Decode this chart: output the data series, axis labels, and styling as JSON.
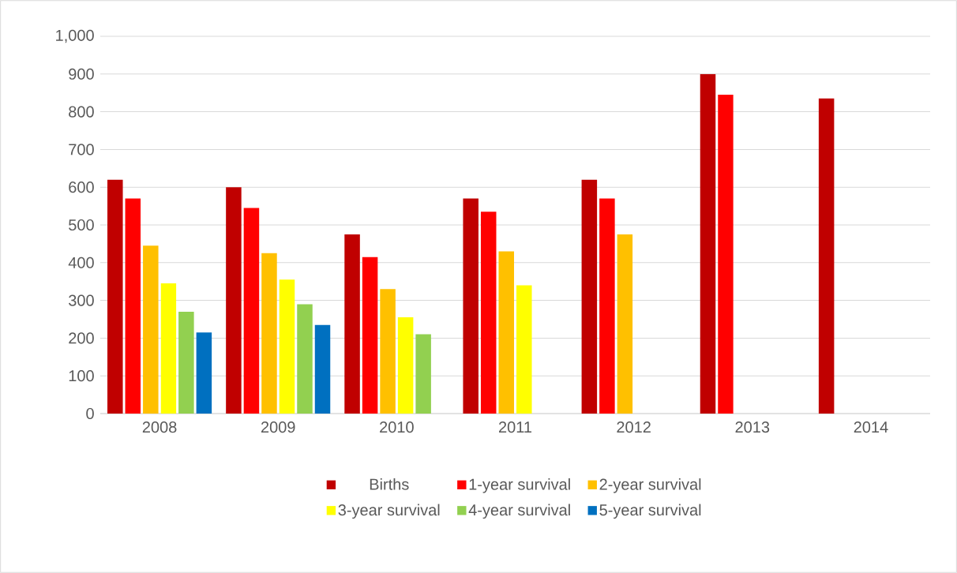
{
  "chart_data": {
    "type": "bar",
    "categories": [
      "2008",
      "2009",
      "2010",
      "2011",
      "2012",
      "2013",
      "2014"
    ],
    "series": [
      {
        "name": "Births",
        "color": "#c00000",
        "values": [
          620,
          600,
          475,
          570,
          620,
          900,
          835
        ]
      },
      {
        "name": "1-year survival",
        "color": "#ff0000",
        "values": [
          570,
          545,
          415,
          535,
          570,
          845,
          null
        ]
      },
      {
        "name": "2-year survival",
        "color": "#ffc000",
        "values": [
          445,
          425,
          330,
          430,
          475,
          null,
          null
        ]
      },
      {
        "name": "3-year survival",
        "color": "#ffff00",
        "values": [
          345,
          355,
          255,
          340,
          null,
          null,
          null
        ]
      },
      {
        "name": "4-year survival",
        "color": "#92d050",
        "values": [
          270,
          290,
          210,
          null,
          null,
          null,
          null
        ]
      },
      {
        "name": "5-year survival",
        "color": "#0070c0",
        "values": [
          215,
          235,
          null,
          null,
          null,
          null,
          null
        ]
      }
    ],
    "ylim": [
      0,
      1000
    ],
    "yticks": [
      0,
      100,
      200,
      300,
      400,
      500,
      600,
      700,
      800,
      900,
      {
        "value": 1000,
        "label": "1,000"
      }
    ],
    "grid": "y",
    "legend": "bottom"
  }
}
